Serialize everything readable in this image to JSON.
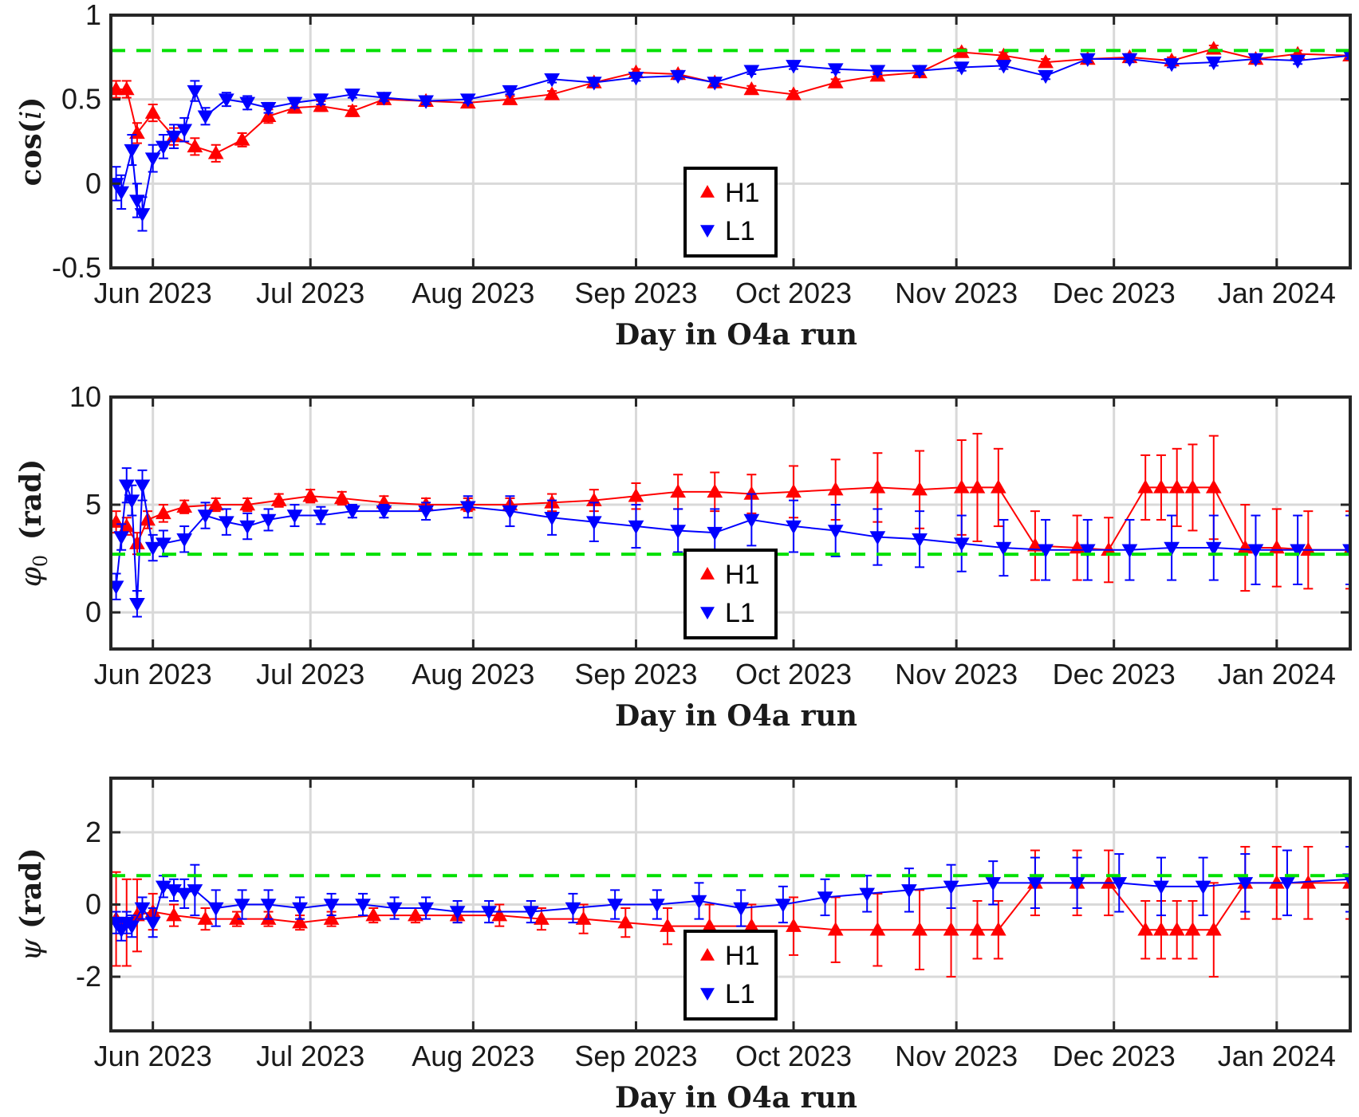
{
  "chart_data": [
    {
      "type": "scatter",
      "ylabel_text": "cos(i)",
      "ylabel_style": "cos",
      "xlabel": "Day in O4a run",
      "xlim": [
        0,
        236
      ],
      "ylim": [
        -0.5,
        1
      ],
      "yticks": [
        -0.5,
        0,
        0.5,
        1
      ],
      "yticklabels": [
        "-0.5",
        "0",
        "0.5",
        "1"
      ],
      "xticks": [
        8,
        38,
        69,
        100,
        130,
        161,
        191,
        222
      ],
      "xticklabels": [
        "Jun 2023",
        "Jul 2023",
        "Aug 2023",
        "Sep 2023",
        "Oct 2023",
        "Nov 2023",
        "Dec 2023",
        "Jan 2024"
      ],
      "grid": true,
      "injected_value": 0.79,
      "legend": {
        "location": "center",
        "entries": [
          "H1",
          "L1"
        ]
      },
      "series": [
        {
          "name": "H1",
          "color": "#ff0000",
          "marker": "triangle-up",
          "x": [
            1,
            3,
            5,
            8,
            12,
            16,
            20,
            25,
            30,
            35,
            40,
            46,
            52,
            60,
            68,
            76,
            84,
            92,
            100,
            108,
            115,
            122,
            130,
            138,
            146,
            154,
            162,
            170,
            178,
            186,
            194,
            202,
            210,
            218,
            226,
            236
          ],
          "y": [
            0.56,
            0.56,
            0.3,
            0.42,
            0.28,
            0.22,
            0.18,
            0.26,
            0.4,
            0.45,
            0.46,
            0.43,
            0.5,
            0.49,
            0.48,
            0.5,
            0.53,
            0.6,
            0.66,
            0.65,
            0.6,
            0.56,
            0.53,
            0.6,
            0.64,
            0.66,
            0.78,
            0.76,
            0.72,
            0.74,
            0.75,
            0.73,
            0.8,
            0.74,
            0.77,
            0.76
          ],
          "err": [
            0.05,
            0.05,
            0.06,
            0.05,
            0.05,
            0.05,
            0.05,
            0.04,
            0.04,
            0.03,
            0.03,
            0.03,
            0.02,
            0.02,
            0.02,
            0.02,
            0.02,
            0.02,
            0.02,
            0.02,
            0.02,
            0.02,
            0.02,
            0.02,
            0.02,
            0.02,
            0.02,
            0.02,
            0.02,
            0.02,
            0.02,
            0.02,
            0.02,
            0.02,
            0.02,
            0.02
          ]
        },
        {
          "name": "L1",
          "color": "#0000ff",
          "marker": "triangle-down",
          "x": [
            1,
            2,
            4,
            5,
            6,
            8,
            10,
            12,
            14,
            16,
            18,
            22,
            26,
            30,
            35,
            40,
            46,
            52,
            60,
            68,
            76,
            84,
            92,
            100,
            108,
            115,
            122,
            130,
            138,
            146,
            154,
            162,
            170,
            178,
            186,
            194,
            202,
            210,
            218,
            226,
            236
          ],
          "y": [
            0.0,
            -0.05,
            0.2,
            -0.1,
            -0.18,
            0.15,
            0.22,
            0.28,
            0.32,
            0.55,
            0.4,
            0.5,
            0.48,
            0.45,
            0.48,
            0.5,
            0.53,
            0.51,
            0.49,
            0.5,
            0.55,
            0.62,
            0.6,
            0.63,
            0.64,
            0.6,
            0.67,
            0.7,
            0.68,
            0.67,
            0.67,
            0.69,
            0.7,
            0.64,
            0.74,
            0.74,
            0.71,
            0.72,
            0.74,
            0.73,
            0.76
          ],
          "err": [
            0.1,
            0.1,
            0.09,
            0.1,
            0.1,
            0.08,
            0.07,
            0.07,
            0.07,
            0.06,
            0.05,
            0.04,
            0.04,
            0.03,
            0.03,
            0.03,
            0.02,
            0.02,
            0.02,
            0.02,
            0.02,
            0.02,
            0.02,
            0.02,
            0.02,
            0.02,
            0.02,
            0.02,
            0.02,
            0.02,
            0.02,
            0.02,
            0.02,
            0.02,
            0.02,
            0.02,
            0.02,
            0.02,
            0.02,
            0.02,
            0.02
          ]
        }
      ]
    },
    {
      "type": "scatter",
      "ylabel_text": "φ0 (rad)",
      "ylabel_style": "phi0",
      "xlabel": "Day in O4a run",
      "xlim": [
        0,
        236
      ],
      "ylim": [
        -1.7,
        10
      ],
      "yticks": [
        0,
        5,
        10
      ],
      "yticklabels": [
        "0",
        "5",
        "10"
      ],
      "xticks": [
        8,
        38,
        69,
        100,
        130,
        161,
        191,
        222
      ],
      "xticklabels": [
        "Jun 2023",
        "Jul 2023",
        "Aug 2023",
        "Sep 2023",
        "Oct 2023",
        "Nov 2023",
        "Dec 2023",
        "Jan 2024"
      ],
      "grid": true,
      "injected_value": 2.7,
      "legend": {
        "location": "center",
        "entries": [
          "H1",
          "L1"
        ]
      },
      "series": [
        {
          "name": "H1",
          "color": "#ff0000",
          "marker": "triangle-up",
          "x": [
            1,
            3,
            5,
            7,
            10,
            14,
            20,
            26,
            32,
            38,
            44,
            52,
            60,
            68,
            76,
            84,
            92,
            100,
            108,
            115,
            122,
            130,
            138,
            146,
            154,
            162,
            165,
            169,
            176,
            184,
            190,
            197,
            200,
            203,
            206,
            210,
            216,
            222,
            228,
            236
          ],
          "y": [
            4.2,
            4.0,
            3.2,
            4.3,
            4.6,
            4.9,
            5.0,
            5.0,
            5.2,
            5.4,
            5.3,
            5.1,
            5.0,
            5.0,
            5.0,
            5.1,
            5.2,
            5.4,
            5.6,
            5.6,
            5.5,
            5.6,
            5.7,
            5.8,
            5.7,
            5.8,
            5.8,
            5.8,
            3.1,
            3.0,
            2.9,
            5.8,
            5.8,
            5.8,
            5.8,
            5.8,
            3.0,
            3.0,
            2.9,
            2.9
          ],
          "err": [
            0.5,
            0.4,
            0.5,
            0.4,
            0.4,
            0.3,
            0.3,
            0.3,
            0.3,
            0.3,
            0.3,
            0.3,
            0.3,
            0.3,
            0.3,
            0.4,
            0.5,
            0.6,
            0.8,
            0.9,
            0.9,
            1.2,
            1.4,
            1.6,
            1.8,
            2.2,
            2.5,
            1.8,
            1.6,
            1.5,
            1.5,
            1.5,
            1.5,
            1.8,
            2.0,
            2.4,
            2.0,
            1.8,
            1.8,
            1.8
          ]
        },
        {
          "name": "L1",
          "color": "#0000ff",
          "marker": "triangle-down",
          "x": [
            1,
            2,
            3,
            4,
            5,
            6,
            8,
            10,
            14,
            18,
            22,
            26,
            30,
            35,
            40,
            46,
            52,
            60,
            68,
            76,
            84,
            92,
            100,
            108,
            115,
            122,
            130,
            138,
            146,
            154,
            162,
            170,
            178,
            186,
            194,
            202,
            210,
            218,
            226,
            236
          ],
          "y": [
            1.2,
            3.5,
            5.9,
            5.2,
            0.4,
            5.9,
            3.0,
            3.2,
            3.4,
            4.5,
            4.2,
            4.0,
            4.3,
            4.5,
            4.5,
            4.7,
            4.7,
            4.7,
            4.9,
            4.7,
            4.4,
            4.2,
            4.0,
            3.8,
            3.7,
            4.3,
            4.0,
            3.8,
            3.5,
            3.4,
            3.2,
            3.0,
            2.9,
            2.9,
            2.9,
            3.0,
            3.0,
            2.9,
            2.9,
            2.9
          ],
          "err": [
            0.6,
            0.6,
            0.8,
            0.7,
            0.6,
            0.7,
            0.6,
            0.6,
            0.6,
            0.6,
            0.6,
            0.6,
            0.5,
            0.5,
            0.4,
            0.3,
            0.3,
            0.4,
            0.5,
            0.7,
            0.8,
            0.9,
            1.0,
            1.0,
            1.1,
            1.2,
            1.2,
            1.2,
            1.3,
            1.3,
            1.3,
            1.3,
            1.4,
            1.4,
            1.4,
            1.5,
            1.5,
            1.6,
            1.6,
            1.6
          ]
        }
      ]
    },
    {
      "type": "scatter",
      "ylabel_text": "ψ (rad)",
      "ylabel_style": "psi",
      "xlabel": "Day in O4a run",
      "xlim": [
        0,
        236
      ],
      "ylim": [
        -3.5,
        3.5
      ],
      "yticks": [
        -2,
        0,
        2
      ],
      "yticklabels": [
        "-2",
        "0",
        "2"
      ],
      "xticks": [
        8,
        38,
        69,
        100,
        130,
        161,
        191,
        222
      ],
      "xticklabels": [
        "Jun 2023",
        "Jul 2023",
        "Aug 2023",
        "Sep 2023",
        "Oct 2023",
        "Nov 2023",
        "Dec 2023",
        "Jan 2024"
      ],
      "grid": true,
      "injected_value": 0.8,
      "legend": {
        "location": "center",
        "entries": [
          "H1",
          "L1"
        ]
      },
      "series": [
        {
          "name": "H1",
          "color": "#ff0000",
          "marker": "triangle-up",
          "x": [
            1,
            3,
            5,
            8,
            12,
            18,
            24,
            30,
            36,
            42,
            50,
            58,
            66,
            74,
            82,
            90,
            98,
            106,
            114,
            122,
            130,
            138,
            146,
            154,
            160,
            165,
            169,
            176,
            184,
            190,
            197,
            200,
            203,
            206,
            210,
            216,
            222,
            228,
            236
          ],
          "y": [
            -0.4,
            -0.5,
            -0.3,
            -0.2,
            -0.3,
            -0.4,
            -0.4,
            -0.4,
            -0.5,
            -0.4,
            -0.3,
            -0.3,
            -0.3,
            -0.3,
            -0.4,
            -0.4,
            -0.5,
            -0.6,
            -0.6,
            -0.6,
            -0.6,
            -0.7,
            -0.7,
            -0.7,
            -0.7,
            -0.7,
            -0.7,
            0.6,
            0.6,
            0.6,
            -0.7,
            -0.7,
            -0.7,
            -0.7,
            -0.7,
            0.6,
            0.6,
            0.6,
            0.6
          ],
          "err": [
            1.3,
            1.2,
            1.0,
            0.5,
            0.3,
            0.3,
            0.2,
            0.2,
            0.2,
            0.2,
            0.2,
            0.2,
            0.2,
            0.3,
            0.3,
            0.4,
            0.4,
            0.5,
            0.6,
            0.6,
            0.8,
            0.9,
            1.0,
            1.1,
            1.3,
            0.8,
            0.8,
            0.9,
            0.9,
            0.9,
            0.8,
            0.8,
            0.8,
            0.8,
            1.3,
            1.0,
            1.0,
            1.0,
            1.0
          ]
        },
        {
          "name": "L1",
          "color": "#0000ff",
          "marker": "triangle-down",
          "x": [
            1,
            2,
            3,
            4,
            6,
            8,
            10,
            12,
            14,
            16,
            20,
            25,
            30,
            36,
            42,
            48,
            54,
            60,
            66,
            72,
            80,
            88,
            96,
            104,
            112,
            120,
            128,
            136,
            144,
            152,
            160,
            168,
            176,
            184,
            192,
            200,
            208,
            216,
            224,
            236
          ],
          "y": [
            -0.5,
            -0.7,
            -0.5,
            -0.6,
            -0.1,
            -0.5,
            0.5,
            0.4,
            0.3,
            0.4,
            -0.1,
            0.0,
            0.0,
            -0.1,
            0.0,
            0.0,
            -0.1,
            -0.1,
            -0.2,
            -0.2,
            -0.2,
            -0.1,
            0.0,
            0.0,
            0.1,
            -0.1,
            0.0,
            0.2,
            0.3,
            0.4,
            0.5,
            0.6,
            0.6,
            0.6,
            0.6,
            0.5,
            0.5,
            0.6,
            0.6,
            0.7
          ],
          "err": [
            0.3,
            0.3,
            0.3,
            0.3,
            0.3,
            0.4,
            0.3,
            0.3,
            0.4,
            0.7,
            0.5,
            0.4,
            0.4,
            0.3,
            0.3,
            0.3,
            0.3,
            0.3,
            0.3,
            0.3,
            0.3,
            0.4,
            0.4,
            0.4,
            0.5,
            0.5,
            0.5,
            0.5,
            0.5,
            0.6,
            0.6,
            0.6,
            0.7,
            0.7,
            0.8,
            0.8,
            0.8,
            0.8,
            0.9,
            0.9
          ]
        }
      ]
    }
  ]
}
